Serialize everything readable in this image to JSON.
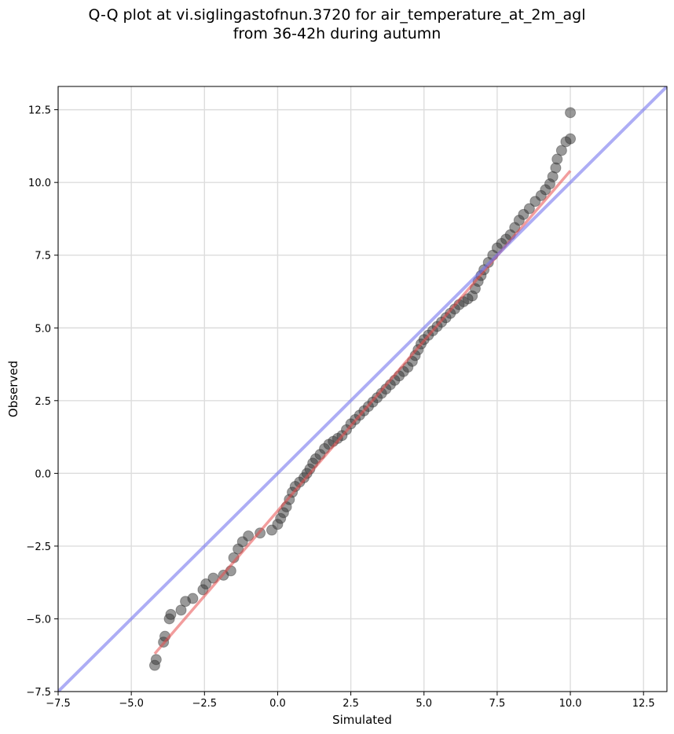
{
  "chart_data": {
    "type": "scatter",
    "title_line1": "Q-Q plot at vi.siglingastofnun.3720 for air_temperature_at_2m_agl",
    "title_line2": "from 36-42h during autumn",
    "xlabel": "Simulated",
    "ylabel": "Observed",
    "xlim": [
      -7.5,
      13.3
    ],
    "ylim": [
      -7.5,
      13.3
    ],
    "xticks": [
      -7.5,
      -5.0,
      -2.5,
      0.0,
      2.5,
      5.0,
      7.5,
      10.0,
      12.5
    ],
    "yticks": [
      -7.5,
      -5.0,
      -2.5,
      0.0,
      2.5,
      5.0,
      7.5,
      10.0,
      12.5
    ],
    "tick_labels": [
      "−7.5",
      "−5.0",
      "−2.5",
      "0.0",
      "2.5",
      "5.0",
      "7.5",
      "10.0",
      "12.5"
    ],
    "grid": true,
    "points": [
      [
        -4.2,
        -6.6
      ],
      [
        -4.15,
        -6.4
      ],
      [
        -3.9,
        -5.8
      ],
      [
        -3.85,
        -5.6
      ],
      [
        -3.7,
        -5.0
      ],
      [
        -3.65,
        -4.85
      ],
      [
        -3.3,
        -4.7
      ],
      [
        -3.15,
        -4.4
      ],
      [
        -2.9,
        -4.3
      ],
      [
        -2.55,
        -4.0
      ],
      [
        -2.45,
        -3.8
      ],
      [
        -2.2,
        -3.6
      ],
      [
        -1.85,
        -3.5
      ],
      [
        -1.6,
        -3.35
      ],
      [
        -1.5,
        -2.9
      ],
      [
        -1.35,
        -2.6
      ],
      [
        -1.2,
        -2.35
      ],
      [
        -1.0,
        -2.15
      ],
      [
        -0.6,
        -2.05
      ],
      [
        -0.2,
        -1.95
      ],
      [
        0.0,
        -1.75
      ],
      [
        0.1,
        -1.55
      ],
      [
        0.2,
        -1.35
      ],
      [
        0.3,
        -1.15
      ],
      [
        0.4,
        -0.9
      ],
      [
        0.5,
        -0.65
      ],
      [
        0.6,
        -0.45
      ],
      [
        0.75,
        -0.3
      ],
      [
        0.9,
        -0.15
      ],
      [
        1.0,
        0.0
      ],
      [
        1.1,
        0.15
      ],
      [
        1.2,
        0.35
      ],
      [
        1.3,
        0.5
      ],
      [
        1.45,
        0.65
      ],
      [
        1.6,
        0.85
      ],
      [
        1.75,
        1.0
      ],
      [
        1.9,
        1.1
      ],
      [
        2.05,
        1.2
      ],
      [
        2.2,
        1.3
      ],
      [
        2.35,
        1.5
      ],
      [
        2.5,
        1.7
      ],
      [
        2.65,
        1.85
      ],
      [
        2.8,
        2.0
      ],
      [
        2.95,
        2.15
      ],
      [
        3.1,
        2.3
      ],
      [
        3.25,
        2.45
      ],
      [
        3.4,
        2.6
      ],
      [
        3.55,
        2.75
      ],
      [
        3.7,
        2.9
      ],
      [
        3.85,
        3.05
      ],
      [
        4.0,
        3.2
      ],
      [
        4.15,
        3.35
      ],
      [
        4.3,
        3.5
      ],
      [
        4.45,
        3.65
      ],
      [
        4.6,
        3.85
      ],
      [
        4.7,
        4.05
      ],
      [
        4.8,
        4.25
      ],
      [
        4.9,
        4.45
      ],
      [
        5.0,
        4.6
      ],
      [
        5.15,
        4.75
      ],
      [
        5.3,
        4.9
      ],
      [
        5.45,
        5.05
      ],
      [
        5.6,
        5.2
      ],
      [
        5.75,
        5.35
      ],
      [
        5.9,
        5.5
      ],
      [
        6.05,
        5.65
      ],
      [
        6.2,
        5.8
      ],
      [
        6.35,
        5.9
      ],
      [
        6.5,
        6.0
      ],
      [
        6.65,
        6.1
      ],
      [
        6.75,
        6.35
      ],
      [
        6.85,
        6.6
      ],
      [
        6.95,
        6.8
      ],
      [
        7.05,
        7.0
      ],
      [
        7.2,
        7.25
      ],
      [
        7.35,
        7.5
      ],
      [
        7.5,
        7.75
      ],
      [
        7.65,
        7.9
      ],
      [
        7.8,
        8.05
      ],
      [
        7.95,
        8.2
      ],
      [
        8.1,
        8.45
      ],
      [
        8.25,
        8.7
      ],
      [
        8.4,
        8.9
      ],
      [
        8.6,
        9.1
      ],
      [
        8.8,
        9.35
      ],
      [
        9.0,
        9.55
      ],
      [
        9.15,
        9.75
      ],
      [
        9.3,
        9.95
      ],
      [
        9.4,
        10.2
      ],
      [
        9.5,
        10.5
      ],
      [
        9.55,
        10.8
      ],
      [
        9.7,
        11.1
      ],
      [
        9.85,
        11.4
      ],
      [
        10.0,
        11.5
      ],
      [
        10.0,
        12.4
      ]
    ],
    "fit_line": {
      "x": [
        -4.2,
        10.0
      ],
      "y": [
        -6.2,
        10.4
      ]
    },
    "identity_line": {
      "x": [
        -7.5,
        13.3
      ],
      "y": [
        -7.5,
        13.3
      ]
    },
    "colors": {
      "points": "#333333",
      "fit_line": "#e84d4d",
      "identity_line": "#7777ee",
      "grid": "#dddddd"
    }
  }
}
